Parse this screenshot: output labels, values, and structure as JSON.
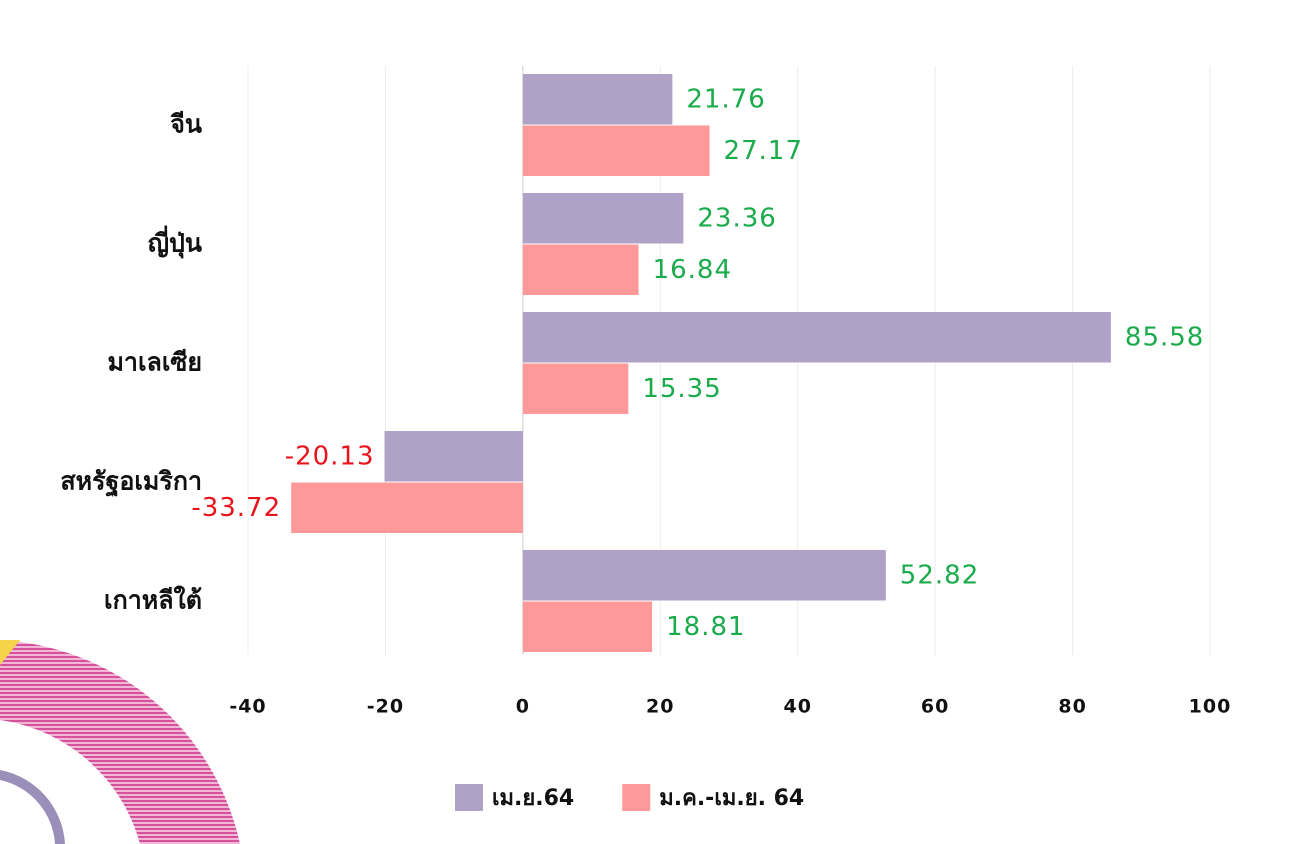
{
  "chart_data": {
    "type": "hbar",
    "categories": [
      "จีน",
      "ญี่ปุ่น",
      "มาเลเซีย",
      "สหรัฐอเมริกา",
      "เกาหลีใต้"
    ],
    "series": [
      {
        "name": "เม.ย.64",
        "color": "#b0a1c6",
        "values": [
          21.76,
          23.36,
          85.58,
          -20.13,
          52.82
        ]
      },
      {
        "name": "ม.ค.-เม.ย. 64",
        "color": "#ff9999",
        "values": [
          27.17,
          16.84,
          15.35,
          -33.72,
          18.81
        ]
      }
    ],
    "xlim": [
      -40,
      100
    ],
    "xticks": [
      -40,
      -20,
      0,
      20,
      40,
      60,
      80,
      100
    ],
    "grid": true,
    "label_colors": {
      "positive": "#1aab4b",
      "negative": "#e8141b"
    }
  }
}
